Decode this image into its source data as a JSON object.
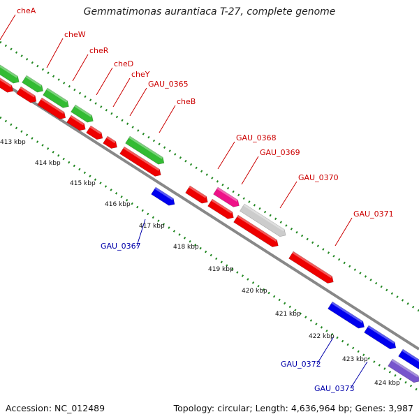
{
  "header": {
    "title": "Gemmatimonas aurantiaca T-27, complete genome"
  },
  "footer": {
    "accession": "Accession: NC_012489",
    "topology": "Topology: circular; Length: 4,636,964 bp; Genes: 3,987"
  },
  "colors": {
    "forward_red": "#ee0000",
    "forward_green": "#33bb33",
    "reverse_blue": "#0000ee",
    "pink": "#ee1188",
    "gray_gene": "#cccccc",
    "purple": "#7755cc",
    "backbone": "#888888",
    "label_red": "#cc0000",
    "label_blue": "#0000aa",
    "tick_green": "#228822"
  },
  "gene_labels": [
    "cheA",
    "cheW",
    "cheR",
    "cheD",
    "cheY",
    "GAU_0365",
    "cheB",
    "GAU_0368",
    "GAU_0369",
    "GAU_0370",
    "GAU_0371",
    "GAU_0367",
    "GAU_0372",
    "GAU_0373"
  ],
  "scale_labels": [
    "413 kbp",
    "414 kbp",
    "415 kbp",
    "416 kbp",
    "417 kbp",
    "418 kbp",
    "419 kbp",
    "420 kbp",
    "421 kbp",
    "422 kbp",
    "423 kbp",
    "424 kbp"
  ]
}
